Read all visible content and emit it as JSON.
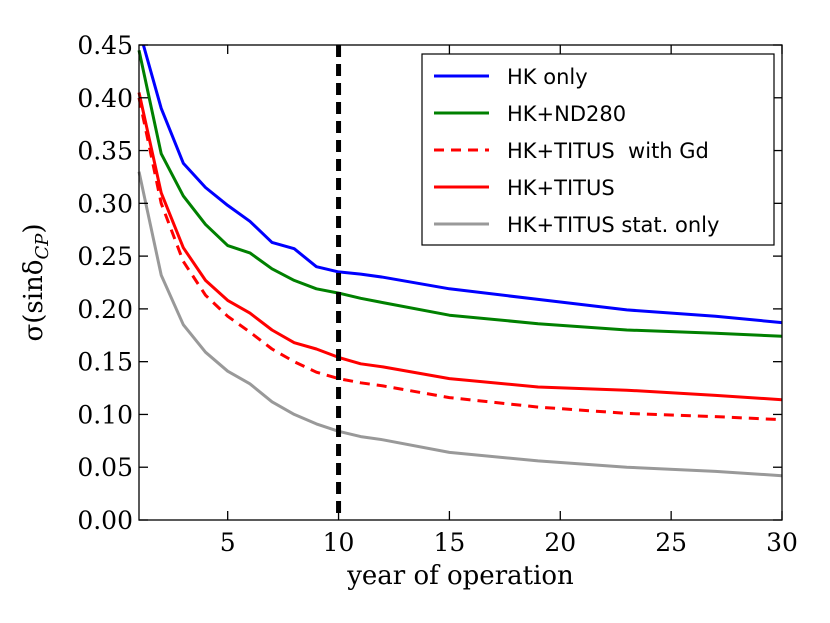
{
  "chart_data": {
    "type": "line",
    "title": "",
    "xlabel": "year of operation",
    "ylabel": "σ(sinδ",
    "ylabel_subscript": "CP",
    "ylabel_close": ")",
    "xlim": [
      1,
      30
    ],
    "ylim": [
      0.0,
      0.45
    ],
    "xticks": [
      5,
      10,
      15,
      20,
      25,
      30
    ],
    "xtick_labels": [
      "5",
      "10",
      "15",
      "20",
      "25",
      "30"
    ],
    "yticks": [
      0.0,
      0.05,
      0.1,
      0.15,
      0.2,
      0.25,
      0.3,
      0.35,
      0.4,
      0.45
    ],
    "ytick_labels": [
      "0.00",
      "0.05",
      "0.10",
      "0.15",
      "0.20",
      "0.25",
      "0.30",
      "0.35",
      "0.40",
      "0.45"
    ],
    "grid": false,
    "legend_position": "top-right",
    "vline": {
      "x": 10,
      "style": "dashed",
      "color": "#000000"
    },
    "series": [
      {
        "name": "HK only",
        "color": "#0000ff",
        "dash": "solid",
        "x": [
          1.2,
          2,
          3,
          4,
          5,
          6,
          7,
          8,
          9,
          10,
          11,
          12,
          15,
          19,
          23,
          27,
          30
        ],
        "y": [
          0.45,
          0.39,
          0.338,
          0.315,
          0.298,
          0.283,
          0.263,
          0.257,
          0.24,
          0.235,
          0.233,
          0.23,
          0.219,
          0.209,
          0.199,
          0.193,
          0.187
        ]
      },
      {
        "name": "HK+ND280",
        "color": "#008000",
        "dash": "solid",
        "x": [
          1,
          2,
          3,
          4,
          5,
          6,
          7,
          8,
          9,
          10,
          11,
          12,
          15,
          19,
          23,
          27,
          30
        ],
        "y": [
          0.445,
          0.347,
          0.307,
          0.28,
          0.26,
          0.253,
          0.238,
          0.227,
          0.219,
          0.215,
          0.21,
          0.206,
          0.194,
          0.186,
          0.18,
          0.177,
          0.174
        ]
      },
      {
        "name": "HK+TITUS  with Gd",
        "color": "#ff0000",
        "dash": "dashed",
        "x": [
          1,
          2,
          3,
          4,
          5,
          6,
          7,
          8,
          9,
          10,
          11,
          12,
          15,
          19,
          23,
          27,
          30
        ],
        "y": [
          0.4,
          0.3,
          0.245,
          0.213,
          0.193,
          0.178,
          0.162,
          0.15,
          0.14,
          0.134,
          0.13,
          0.127,
          0.116,
          0.107,
          0.101,
          0.098,
          0.095
        ]
      },
      {
        "name": "HK+TITUS",
        "color": "#ff0000",
        "dash": "solid",
        "x": [
          1,
          2,
          3,
          4,
          5,
          6,
          7,
          8,
          9,
          10,
          11,
          12,
          15,
          19,
          23,
          27,
          30
        ],
        "y": [
          0.405,
          0.31,
          0.258,
          0.227,
          0.208,
          0.196,
          0.18,
          0.168,
          0.162,
          0.154,
          0.148,
          0.145,
          0.134,
          0.126,
          0.123,
          0.118,
          0.114
        ]
      },
      {
        "name": "HK+TITUS stat. only",
        "color": "#999999",
        "dash": "solid",
        "x": [
          1,
          2,
          3,
          4,
          5,
          6,
          7,
          8,
          9,
          10,
          11,
          12,
          15,
          19,
          23,
          27,
          30
        ],
        "y": [
          0.33,
          0.232,
          0.185,
          0.159,
          0.141,
          0.129,
          0.112,
          0.1,
          0.091,
          0.084,
          0.079,
          0.076,
          0.064,
          0.056,
          0.05,
          0.046,
          0.042
        ]
      }
    ]
  }
}
